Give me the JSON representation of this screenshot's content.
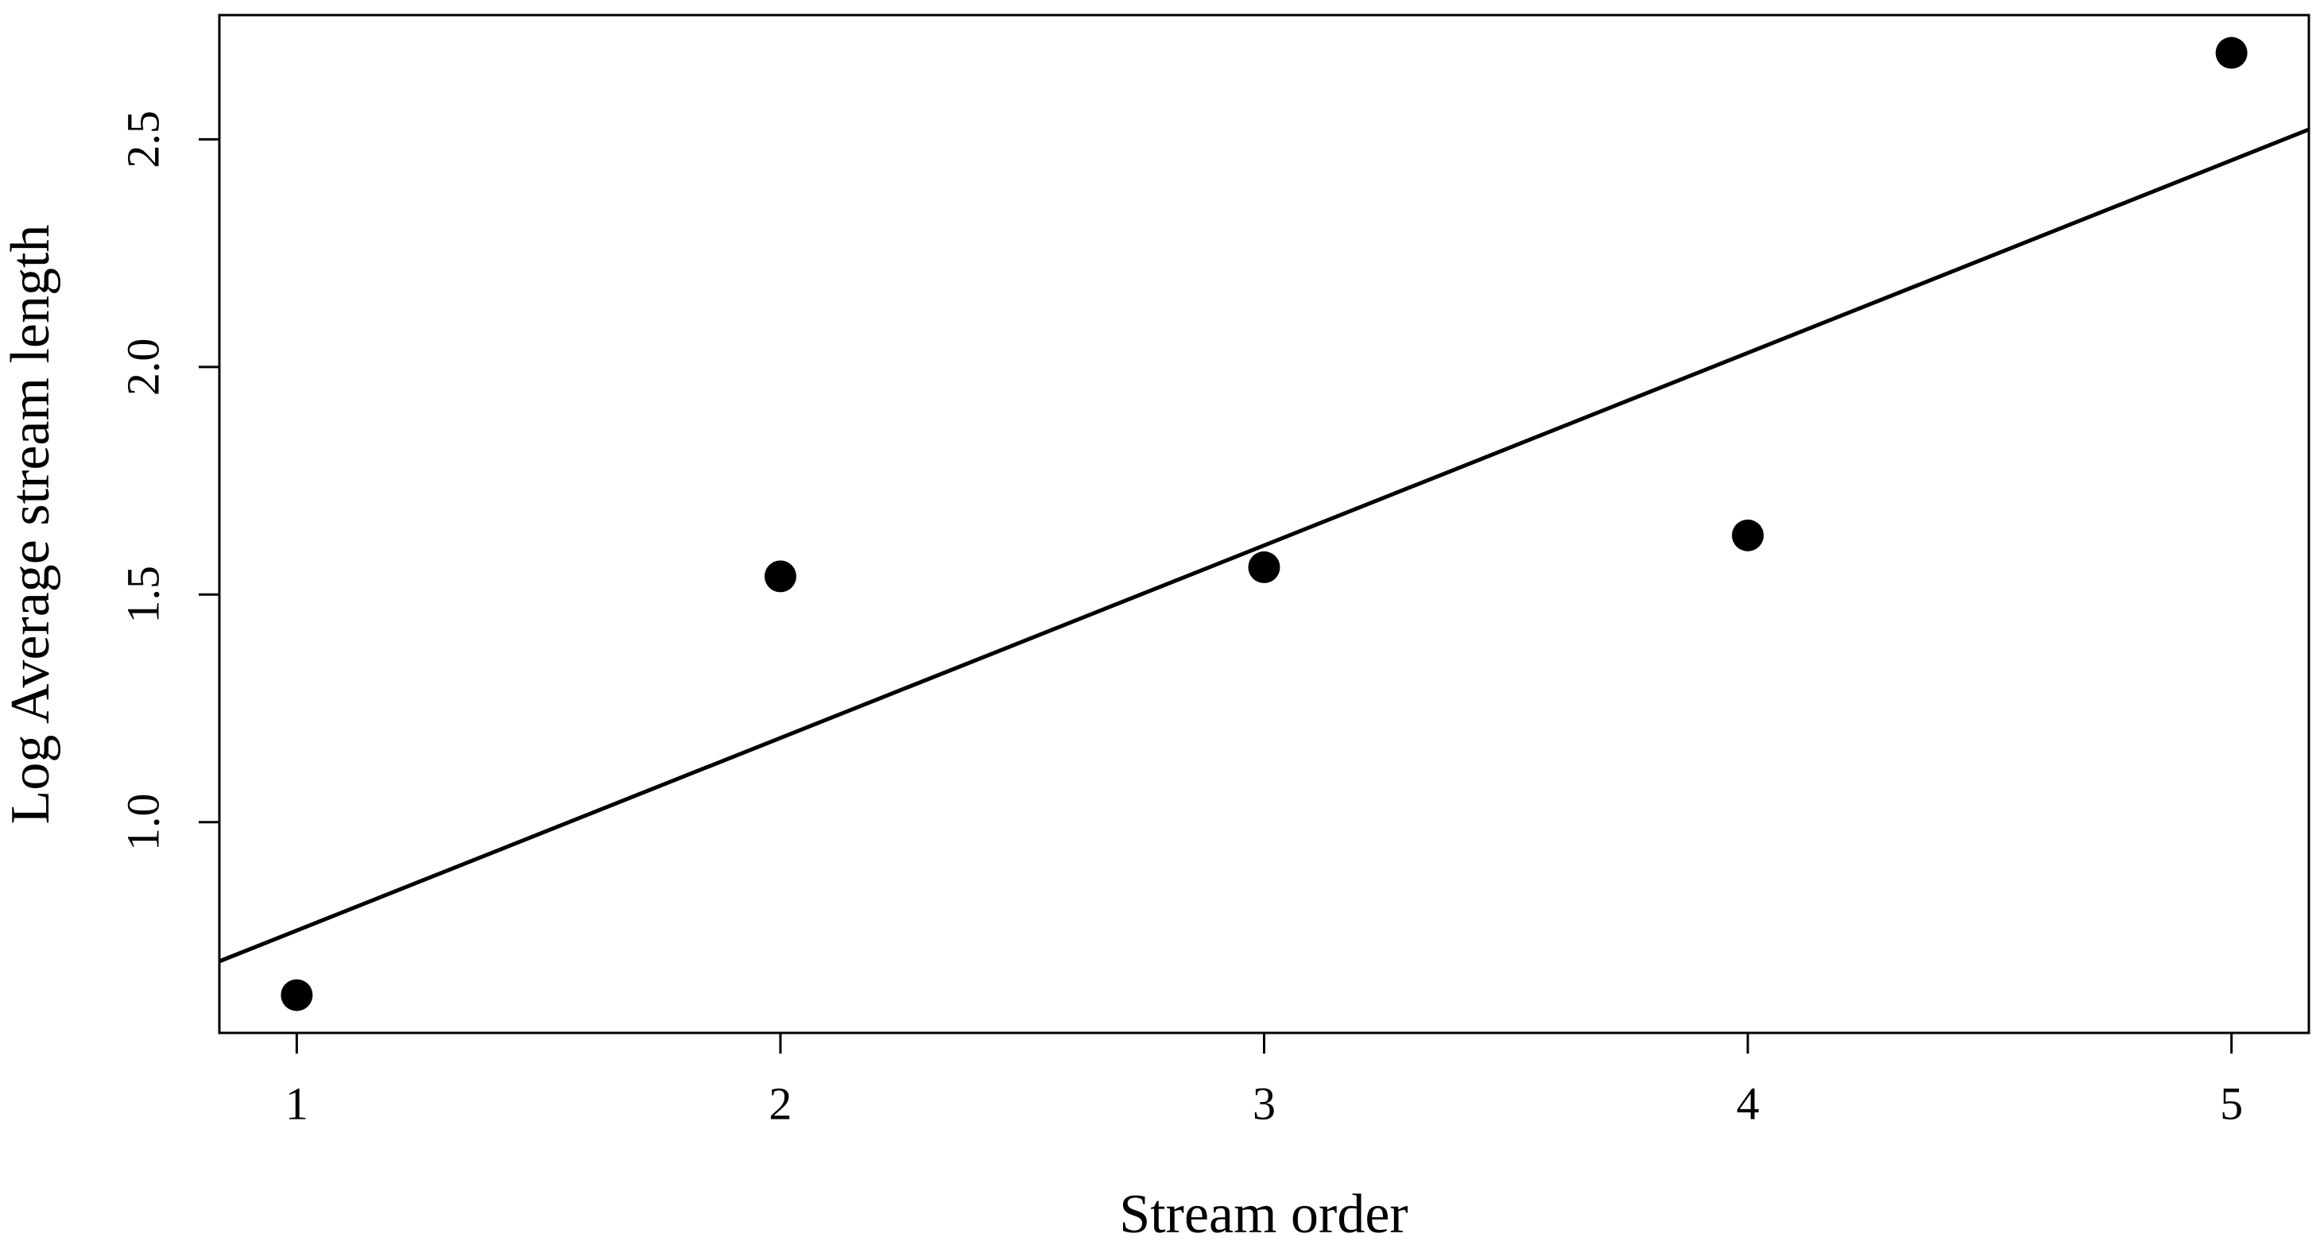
{
  "chart_data": {
    "type": "scatter",
    "x_label": "Stream order",
    "y_label": "Log Average stream length",
    "x": [
      1,
      2,
      3,
      4,
      5
    ],
    "values": [
      0.62,
      1.54,
      1.56,
      1.63,
      2.69
    ],
    "color": "#000000",
    "trend_line": {
      "intercept": 0.339,
      "slope": 0.423
    },
    "xlim": [
      0.84,
      5.16
    ],
    "xticks": [
      1,
      2,
      3,
      4,
      5
    ],
    "ylim": [
      0.537,
      2.773
    ],
    "yticks": [
      {
        "value": 1,
        "label": "1.0"
      },
      {
        "value": 1.5,
        "label": "1.5"
      },
      {
        "value": 2,
        "label": "2.0"
      },
      {
        "value": 2.5,
        "label": "2.5"
      }
    ],
    "grid": false
  }
}
